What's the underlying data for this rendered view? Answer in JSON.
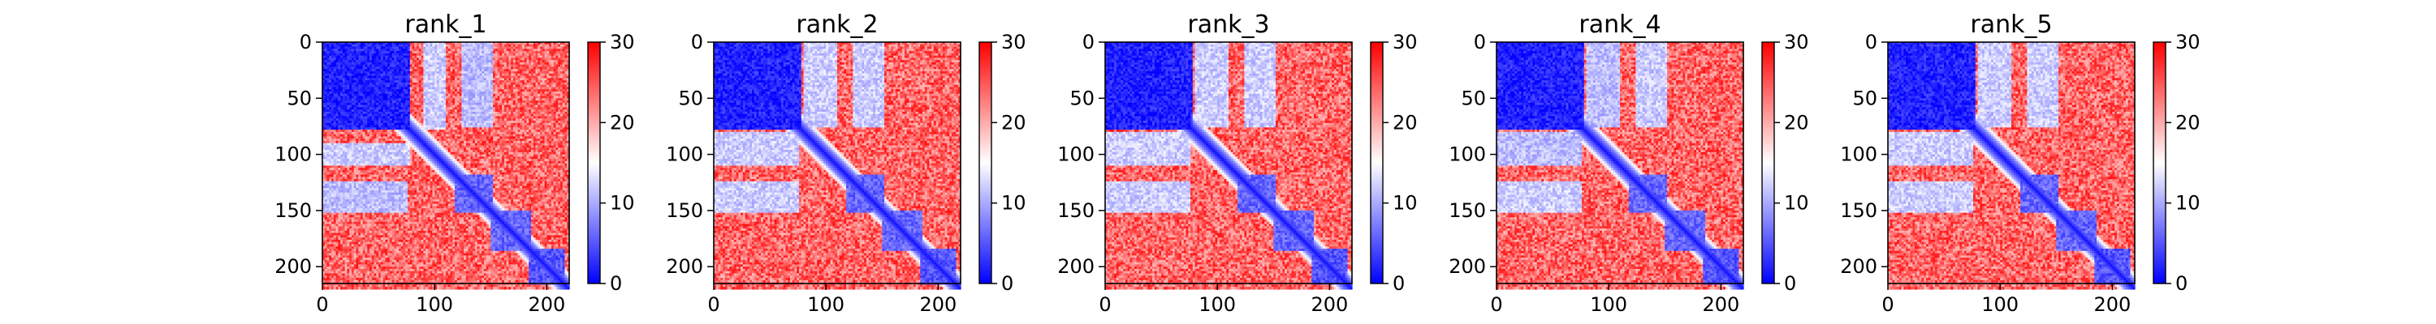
{
  "chart_data": [
    {
      "type": "heatmap",
      "title": "rank_1",
      "x_ticks": [
        0,
        100,
        200
      ],
      "y_ticks": [
        0,
        50,
        100,
        150,
        200
      ],
      "xlim": [
        0,
        220
      ],
      "ylim": [
        215,
        0
      ],
      "colorbar": {
        "min": 0,
        "max": 30,
        "ticks": [
          0,
          10,
          20,
          30
        ],
        "colormap": "bwr"
      },
      "low_blocks": [
        {
          "x": [
            0,
            78
          ],
          "y": [
            0,
            78
          ],
          "value": 2
        },
        {
          "x": [
            90,
            110
          ],
          "y": [
            0,
            75
          ],
          "value": 12
        },
        {
          "x": [
            125,
            152
          ],
          "y": [
            0,
            75
          ],
          "value": 11
        },
        {
          "x": [
            0,
            78
          ],
          "y": [
            90,
            110
          ],
          "value": 13
        },
        {
          "x": [
            5,
            75
          ],
          "y": [
            125,
            148
          ],
          "value": 11
        },
        {
          "x": [
            120,
            152
          ],
          "y": [
            118,
            150
          ],
          "value": 6
        },
        {
          "x": [
            150,
            185
          ],
          "y": [
            150,
            185
          ],
          "value": 6
        },
        {
          "x": [
            185,
            215
          ],
          "y": [
            185,
            215
          ],
          "value": 5
        }
      ]
    },
    {
      "type": "heatmap",
      "title": "rank_2",
      "x_ticks": [
        0,
        100,
        200
      ],
      "y_ticks": [
        0,
        50,
        100,
        150,
        200
      ],
      "xlim": [
        0,
        220
      ],
      "ylim": [
        215,
        0
      ],
      "colorbar": {
        "min": 0,
        "max": 30,
        "ticks": [
          0,
          10,
          20,
          30
        ],
        "colormap": "bwr"
      },
      "low_blocks": [
        {
          "x": [
            0,
            78
          ],
          "y": [
            0,
            78
          ],
          "value": 2
        },
        {
          "x": [
            80,
            110
          ],
          "y": [
            0,
            75
          ],
          "value": 12
        },
        {
          "x": [
            125,
            152
          ],
          "y": [
            0,
            75
          ],
          "value": 12
        },
        {
          "x": [
            5,
            75
          ],
          "y": [
            125,
            148
          ],
          "value": 13
        },
        {
          "x": [
            120,
            152
          ],
          "y": [
            118,
            150
          ],
          "value": 6
        },
        {
          "x": [
            150,
            185
          ],
          "y": [
            150,
            185
          ],
          "value": 6
        },
        {
          "x": [
            185,
            215
          ],
          "y": [
            185,
            215
          ],
          "value": 5
        }
      ]
    },
    {
      "type": "heatmap",
      "title": "rank_3",
      "x_ticks": [
        0,
        100,
        200
      ],
      "y_ticks": [
        0,
        50,
        100,
        150,
        200
      ],
      "xlim": [
        0,
        220
      ],
      "ylim": [
        215,
        0
      ],
      "colorbar": {
        "min": 0,
        "max": 30,
        "ticks": [
          0,
          10,
          20,
          30
        ],
        "colormap": "bwr"
      },
      "low_blocks": [
        {
          "x": [
            0,
            78
          ],
          "y": [
            0,
            78
          ],
          "value": 2
        },
        {
          "x": [
            80,
            110
          ],
          "y": [
            0,
            75
          ],
          "value": 12
        },
        {
          "x": [
            125,
            152
          ],
          "y": [
            0,
            75
          ],
          "value": 12
        },
        {
          "x": [
            5,
            75
          ],
          "y": [
            125,
            148
          ],
          "value": 12
        },
        {
          "x": [
            120,
            152
          ],
          "y": [
            118,
            150
          ],
          "value": 6
        },
        {
          "x": [
            150,
            185
          ],
          "y": [
            150,
            185
          ],
          "value": 6
        },
        {
          "x": [
            185,
            215
          ],
          "y": [
            185,
            215
          ],
          "value": 5
        }
      ]
    },
    {
      "type": "heatmap",
      "title": "rank_4",
      "x_ticks": [
        0,
        100,
        200
      ],
      "y_ticks": [
        0,
        50,
        100,
        150,
        200
      ],
      "xlim": [
        0,
        220
      ],
      "ylim": [
        215,
        0
      ],
      "colorbar": {
        "min": 0,
        "max": 30,
        "ticks": [
          0,
          10,
          20,
          30
        ],
        "colormap": "bwr"
      },
      "low_blocks": [
        {
          "x": [
            0,
            78
          ],
          "y": [
            0,
            78
          ],
          "value": 2
        },
        {
          "x": [
            80,
            110
          ],
          "y": [
            0,
            75
          ],
          "value": 11
        },
        {
          "x": [
            125,
            152
          ],
          "y": [
            0,
            75
          ],
          "value": 12
        },
        {
          "x": [
            5,
            75
          ],
          "y": [
            125,
            148
          ],
          "value": 13
        },
        {
          "x": [
            120,
            152
          ],
          "y": [
            118,
            150
          ],
          "value": 6
        },
        {
          "x": [
            150,
            185
          ],
          "y": [
            150,
            185
          ],
          "value": 6
        },
        {
          "x": [
            185,
            215
          ],
          "y": [
            185,
            215
          ],
          "value": 5
        }
      ]
    },
    {
      "type": "heatmap",
      "title": "rank_5",
      "x_ticks": [
        0,
        100,
        200
      ],
      "y_ticks": [
        0,
        50,
        100,
        150,
        200
      ],
      "xlim": [
        0,
        220
      ],
      "ylim": [
        215,
        0
      ],
      "colorbar": {
        "min": 0,
        "max": 30,
        "ticks": [
          0,
          10,
          20,
          30
        ],
        "colormap": "bwr"
      },
      "low_blocks": [
        {
          "x": [
            0,
            78
          ],
          "y": [
            0,
            78
          ],
          "value": 2
        },
        {
          "x": [
            80,
            110
          ],
          "y": [
            0,
            75
          ],
          "value": 12
        },
        {
          "x": [
            125,
            152
          ],
          "y": [
            0,
            75
          ],
          "value": 12
        },
        {
          "x": [
            5,
            75
          ],
          "y": [
            125,
            148
          ],
          "value": 12
        },
        {
          "x": [
            120,
            152
          ],
          "y": [
            118,
            150
          ],
          "value": 6
        },
        {
          "x": [
            150,
            185
          ],
          "y": [
            150,
            185
          ],
          "value": 6
        },
        {
          "x": [
            185,
            215
          ],
          "y": [
            185,
            215
          ],
          "value": 5
        }
      ]
    }
  ]
}
